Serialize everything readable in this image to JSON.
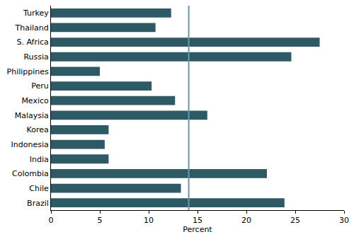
{
  "chart_data": {
    "type": "bar",
    "orientation": "horizontal",
    "x_label": "Percent",
    "categories": [
      "Turkey",
      "Thailand",
      "S. Africa",
      "Russia",
      "Philippines",
      "Peru",
      "Mexico",
      "Malaysia",
      "Korea",
      "Indonesia",
      "India",
      "Colombia",
      "Chile",
      "Brazil"
    ],
    "values": [
      12.3,
      10.7,
      27.5,
      24.6,
      5.0,
      10.3,
      12.7,
      16.0,
      5.9,
      5.5,
      5.9,
      22.1,
      13.3,
      23.9
    ],
    "color": "#2e5a66",
    "reference_line": 14.1,
    "xlim": [
      0,
      30
    ],
    "xticks": [
      0,
      5,
      10,
      15,
      20,
      25,
      30
    ],
    "grid": false
  }
}
